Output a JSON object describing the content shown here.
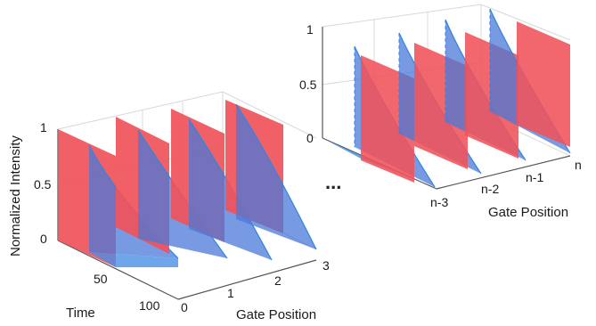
{
  "left_panel": {
    "y_axis_label": "Normalized Intensity",
    "y_ticks": [
      "0",
      "0.5",
      "1"
    ],
    "time_axis_label": "Time",
    "time_ticks": [
      "50",
      "100"
    ],
    "gate_axis_label": "Gate Position",
    "gate_ticks": [
      "0",
      "1",
      "2",
      "3"
    ]
  },
  "right_panel": {
    "y_ticks": [
      "0",
      "0.5",
      "1"
    ],
    "gate_axis_label": "Gate Position",
    "gate_ticks": [
      "n-3",
      "n-2",
      "n-1",
      "n"
    ]
  },
  "ellipsis": "...",
  "colors": {
    "gate_fill": "#f0525a",
    "decay_fill": "#4a90e6",
    "decay_line": "#2f86de",
    "grid": "#d8d8d8",
    "axis": "#555555"
  }
}
